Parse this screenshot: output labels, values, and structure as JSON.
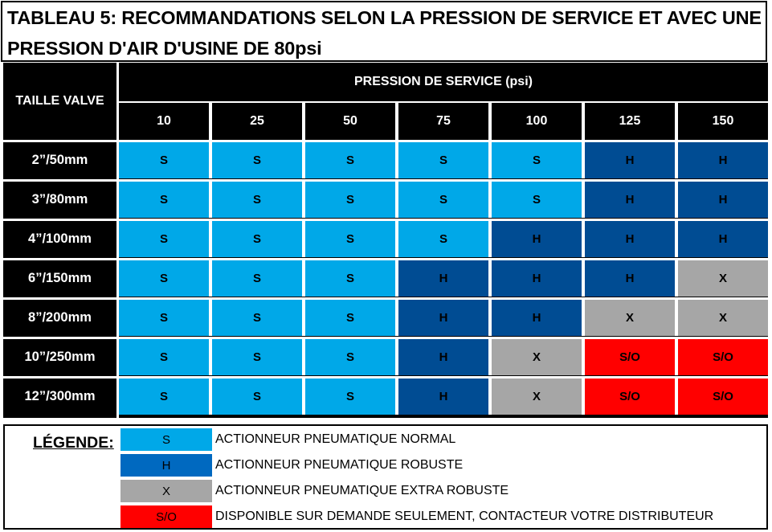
{
  "title": {
    "line1": "TABLEAU 5: RECOMMANDATIONS SELON LA PRESSION DE SERVICE ET AVEC UNE",
    "line2": "PRESSION D'AIR D'USINE DE 80psi"
  },
  "table": {
    "row_header": "TAILLE VALVE",
    "group_header": "PRESSION DE SERVICE (psi)",
    "columns": [
      "10",
      "25",
      "50",
      "75",
      "100",
      "125",
      "150"
    ],
    "rows": [
      {
        "label": "2”/50mm",
        "cells": [
          "S",
          "S",
          "S",
          "S",
          "S",
          "H",
          "H"
        ]
      },
      {
        "label": "3”/80mm",
        "cells": [
          "S",
          "S",
          "S",
          "S",
          "S",
          "H",
          "H"
        ]
      },
      {
        "label": "4”/100mm",
        "cells": [
          "S",
          "S",
          "S",
          "S",
          "H",
          "H",
          "H"
        ]
      },
      {
        "label": "6”/150mm",
        "cells": [
          "S",
          "S",
          "S",
          "H",
          "H",
          "H",
          "X"
        ]
      },
      {
        "label": "8”/200mm",
        "cells": [
          "S",
          "S",
          "S",
          "H",
          "H",
          "X",
          "X"
        ]
      },
      {
        "label": "10”/250mm",
        "cells": [
          "S",
          "S",
          "S",
          "H",
          "X",
          "S/O",
          "S/O"
        ]
      },
      {
        "label": "12”/300mm",
        "cells": [
          "S",
          "S",
          "S",
          "H",
          "X",
          "S/O",
          "S/O"
        ]
      }
    ]
  },
  "colors": {
    "S": "#00a8e8",
    "H": "#004c93",
    "X": "#a6a6a6",
    "S/O": "#ff0000",
    "legend_H": "#0069c0"
  },
  "legend": {
    "title": "LÉGENDE:",
    "items": [
      {
        "code": "S",
        "text": "ACTIONNEUR PNEUMATIQUE NORMAL"
      },
      {
        "code": "H",
        "text": "ACTIONNEUR PNEUMATIQUE ROBUSTE"
      },
      {
        "code": "X",
        "text": "ACTIONNEUR PNEUMATIQUE EXTRA ROBUSTE"
      },
      {
        "code": "S/O",
        "text": "DISPONIBLE SUR DEMANDE SEULEMENT, CONTACTEUR VOTRE DISTRIBUTEUR"
      }
    ]
  }
}
